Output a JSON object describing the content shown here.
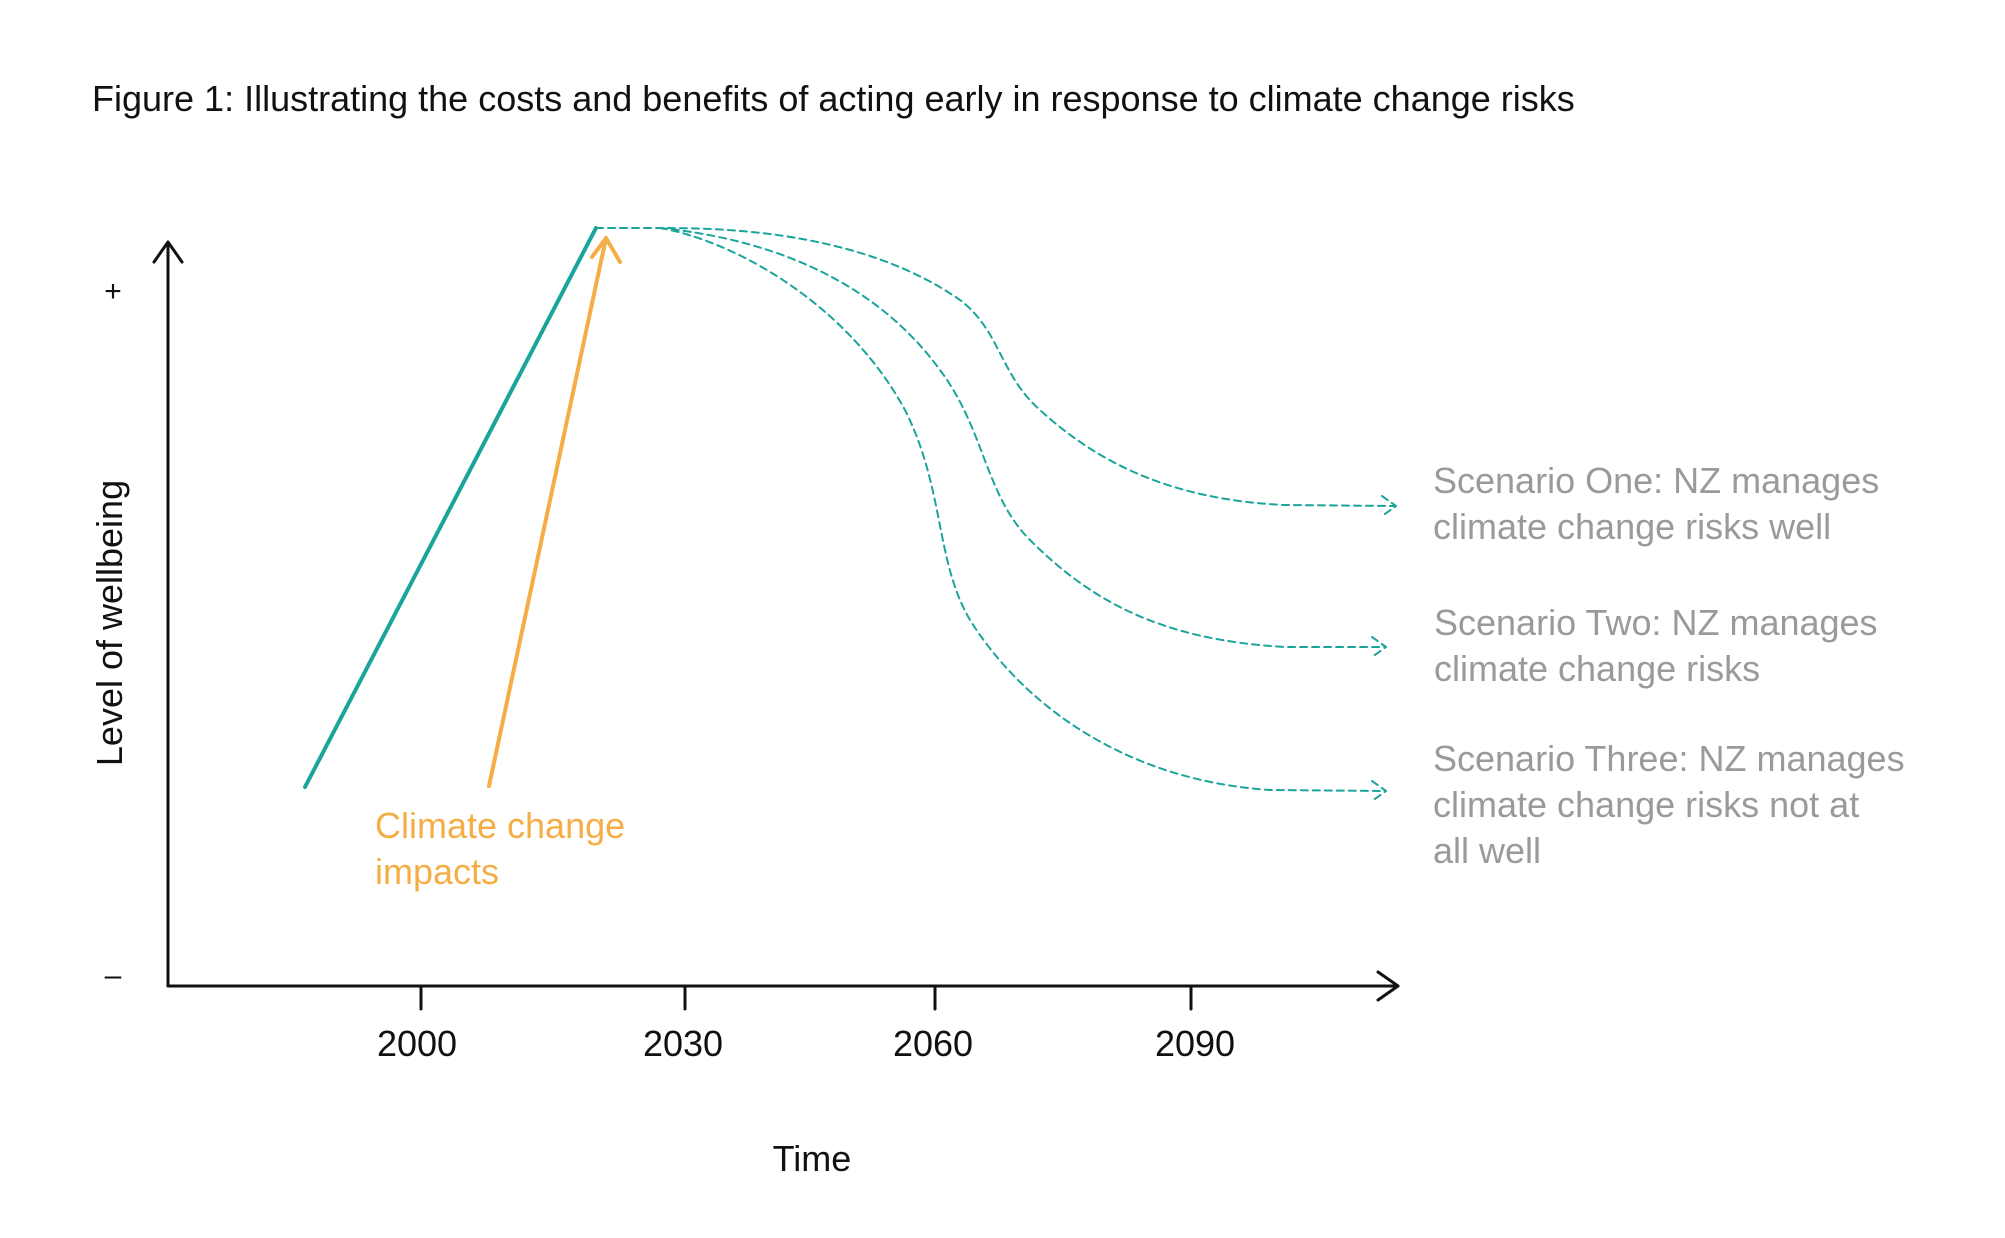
{
  "title": "Figure 1: Illustrating the costs and benefits of acting early in response to climate change risks",
  "colors": {
    "teal": "#1aa49a",
    "orange": "#f5ad45",
    "gray_label": "#9a9a9a",
    "axis": "#111111"
  },
  "axes": {
    "y_label": "Level of wellbeing",
    "x_label": "Time",
    "y_top_sign": "+",
    "y_bottom_sign": "–",
    "x_ticks": [
      "2000",
      "2030",
      "2060",
      "2090"
    ]
  },
  "impacts": {
    "line1": "Climate change",
    "line2": "impacts"
  },
  "scenarios": [
    {
      "lines": [
        "Scenario One: NZ manages",
        "climate change risks well"
      ]
    },
    {
      "lines": [
        "Scenario Two: NZ manages",
        "climate change risks"
      ]
    },
    {
      "lines": [
        "Scenario Three: NZ manages",
        "climate change risks not at",
        "all well"
      ]
    }
  ]
}
